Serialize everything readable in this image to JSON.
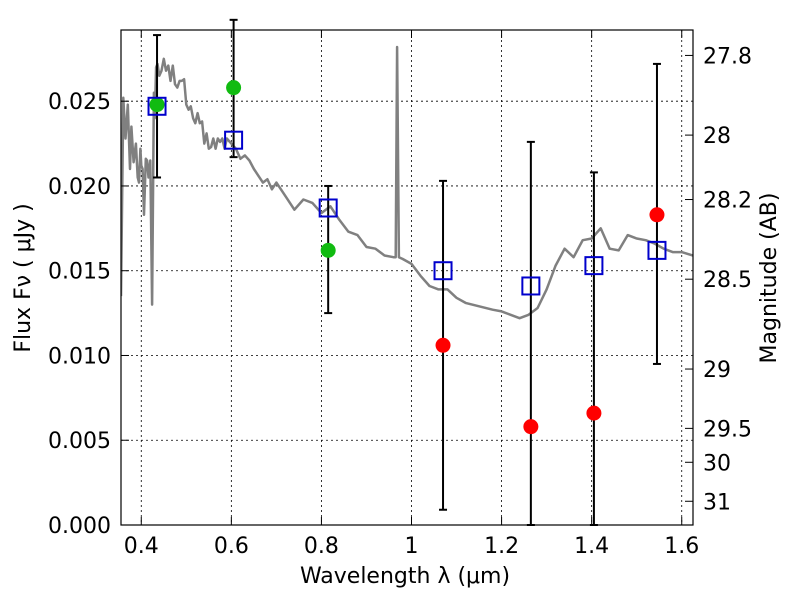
{
  "chart_data": {
    "type": "scatter",
    "xlabel": "Wavelength  λ (μm)",
    "ylabel": "Flux  Fν  ( μJy )",
    "ylabel_right": "Magnitude (AB)",
    "xlim": [
      0.355,
      1.625
    ],
    "ylim": [
      0.0,
      0.0292
    ],
    "x_ticks": [
      0.4,
      0.6,
      0.8,
      1.0,
      1.2,
      1.4,
      1.6
    ],
    "x_tick_labels": [
      "0.4",
      "0.6",
      "0.8",
      "1",
      "1.2",
      "1.4",
      "1.6"
    ],
    "y_ticks": [
      0.0,
      0.005,
      0.01,
      0.015,
      0.02,
      0.025
    ],
    "y_tick_labels": [
      "0.000",
      "0.005",
      "0.010",
      "0.015",
      "0.020",
      "0.025"
    ],
    "right_ticks": [
      {
        "flux": 0.0277,
        "label": "27.8"
      },
      {
        "flux": 0.023,
        "label": "28"
      },
      {
        "flux": 0.0192,
        "label": "28.2"
      },
      {
        "flux": 0.0145,
        "label": "28.5"
      },
      {
        "flux": 0.0092,
        "label": "29"
      },
      {
        "flux": 0.0057,
        "label": "29.5"
      },
      {
        "flux": 0.0037,
        "label": "30"
      },
      {
        "flux": 0.0014,
        "label": "31"
      }
    ],
    "grid": true,
    "series": [
      {
        "kind": "model_sed",
        "color": "#808080",
        "x": [
          0.355,
          0.36,
          0.365,
          0.37,
          0.375,
          0.378,
          0.383,
          0.388,
          0.392,
          0.395,
          0.398,
          0.4,
          0.403,
          0.406,
          0.41,
          0.413,
          0.416,
          0.42,
          0.424,
          0.428,
          0.43,
          0.433,
          0.436,
          0.44,
          0.445,
          0.45,
          0.455,
          0.46,
          0.465,
          0.47,
          0.475,
          0.48,
          0.485,
          0.49,
          0.495,
          0.5,
          0.505,
          0.51,
          0.515,
          0.52,
          0.525,
          0.53,
          0.535,
          0.54,
          0.545,
          0.55,
          0.555,
          0.56,
          0.565,
          0.57,
          0.575,
          0.58,
          0.585,
          0.59,
          0.6,
          0.61,
          0.62,
          0.63,
          0.64,
          0.65,
          0.66,
          0.67,
          0.68,
          0.69,
          0.7,
          0.72,
          0.74,
          0.76,
          0.78,
          0.8,
          0.82,
          0.84,
          0.86,
          0.88,
          0.9,
          0.92,
          0.94,
          0.96,
          0.965,
          0.968,
          0.972,
          0.98,
          1.0,
          1.02,
          1.04,
          1.06,
          1.08,
          1.1,
          1.12,
          1.15,
          1.18,
          1.2,
          1.22,
          1.24,
          1.26,
          1.28,
          1.3,
          1.32,
          1.34,
          1.36,
          1.38,
          1.4,
          1.42,
          1.44,
          1.46,
          1.48,
          1.5,
          1.52,
          1.54,
          1.56,
          1.58,
          1.6,
          1.625
        ],
        "y": [
          0.0135,
          0.0252,
          0.0228,
          0.0248,
          0.021,
          0.0235,
          0.0214,
          0.0225,
          0.0205,
          0.0202,
          0.0222,
          0.0212,
          0.021,
          0.0183,
          0.0216,
          0.0215,
          0.0205,
          0.0215,
          0.013,
          0.0255,
          0.024,
          0.027,
          0.0272,
          0.0265,
          0.0268,
          0.0275,
          0.0268,
          0.0271,
          0.0262,
          0.0271,
          0.026,
          0.0258,
          0.0262,
          0.0262,
          0.0263,
          0.0248,
          0.0245,
          0.0247,
          0.024,
          0.0237,
          0.0243,
          0.0237,
          0.0238,
          0.0225,
          0.0231,
          0.0222,
          0.0223,
          0.0228,
          0.0222,
          0.0228,
          0.0226,
          0.0228,
          0.0222,
          0.0228,
          0.0225,
          0.0222,
          0.0216,
          0.0218,
          0.0215,
          0.021,
          0.0206,
          0.0202,
          0.0204,
          0.0198,
          0.0202,
          0.0194,
          0.0186,
          0.0192,
          0.019,
          0.0184,
          0.0188,
          0.018,
          0.0173,
          0.0171,
          0.0164,
          0.0163,
          0.0159,
          0.0158,
          0.0158,
          0.0282,
          0.0158,
          0.0157,
          0.0154,
          0.0147,
          0.0141,
          0.0139,
          0.0139,
          0.0134,
          0.0131,
          0.0129,
          0.0127,
          0.0126,
          0.0124,
          0.0122,
          0.0124,
          0.0128,
          0.0139,
          0.0153,
          0.0163,
          0.0158,
          0.0168,
          0.0169,
          0.0175,
          0.0163,
          0.0162,
          0.0171,
          0.0169,
          0.0168,
          0.0166,
          0.0163,
          0.0161,
          0.0161,
          0.0159
        ]
      },
      {
        "kind": "observed_with_errors",
        "marker": "open-square",
        "color": "#0000cc",
        "points": [
          {
            "x": 0.435,
            "y": 0.0247,
            "yerr_low": 0.0205,
            "yerr_high": 0.0289
          },
          {
            "x": 0.605,
            "y": 0.0227,
            "yerr_low": 0.0217,
            "yerr_high": 0.0298
          },
          {
            "x": 0.815,
            "y": 0.0187,
            "yerr_low": 0.0125,
            "yerr_high": 0.02
          },
          {
            "x": 1.07,
            "y": 0.015,
            "yerr_low": 0.0009,
            "yerr_high": 0.0203
          },
          {
            "x": 1.265,
            "y": 0.0141,
            "yerr_low": 0.0,
            "yerr_high": 0.0226
          },
          {
            "x": 1.405,
            "y": 0.0153,
            "yerr_low": 0.0,
            "yerr_high": 0.0208
          },
          {
            "x": 1.545,
            "y": 0.0162,
            "yerr_low": 0.0095,
            "yerr_high": 0.0272
          }
        ]
      },
      {
        "kind": "model_points_green",
        "marker": "filled-circle",
        "color": "#11bb11",
        "points": [
          {
            "x": 0.435,
            "y": 0.0248
          },
          {
            "x": 0.605,
            "y": 0.0258
          },
          {
            "x": 0.815,
            "y": 0.0162
          }
        ]
      },
      {
        "kind": "model_points_red",
        "marker": "filled-circle",
        "color": "#ff0000",
        "points": [
          {
            "x": 1.07,
            "y": 0.0106
          },
          {
            "x": 1.265,
            "y": 0.0058
          },
          {
            "x": 1.405,
            "y": 0.0066
          },
          {
            "x": 1.545,
            "y": 0.0183
          }
        ]
      }
    ]
  }
}
